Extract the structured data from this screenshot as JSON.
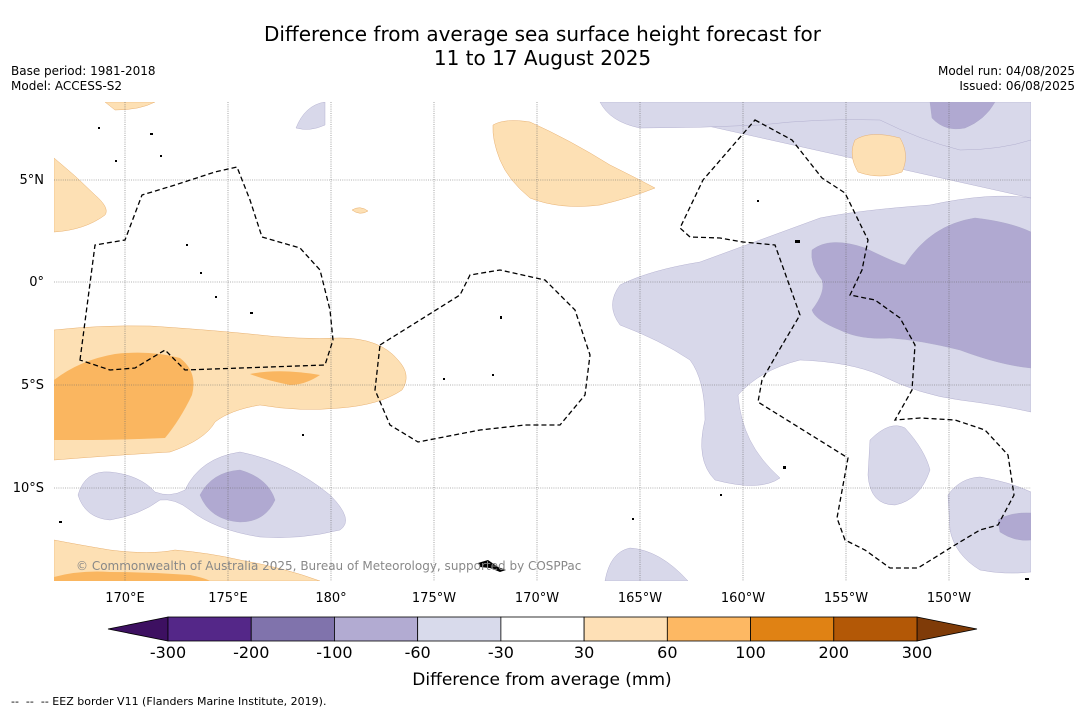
{
  "title": {
    "line1": "Difference from average sea surface height forecast for",
    "line2": "11 to 17 August 2025"
  },
  "meta": {
    "base_period": "Base period: 1981-2018",
    "model": "Model: ACCESS-S2",
    "model_run": "Model run: 04/08/2025",
    "issued": "Issued: 06/08/2025"
  },
  "map": {
    "lat_labels": [
      "5°N",
      "0°",
      "5°S",
      "10°S"
    ],
    "lon_labels": [
      "170°E",
      "175°E",
      "180°",
      "175°W",
      "170°W",
      "165°W",
      "160°W",
      "155°W",
      "150°W"
    ],
    "copyright": "© Commonwealth of Australia 2025, Bureau of Meteorology, supported by COSPPac",
    "colors": {
      "neg_30_60": "#d8d8ea",
      "neg_60_100": "#b0a9d1",
      "pos_30_60": "#fde0b4",
      "pos_60_100": "#fab660"
    }
  },
  "colorbar": {
    "title": "Difference from average (mm)",
    "ticks": [
      "-300",
      "-200",
      "-100",
      "-60",
      "-30",
      "30",
      "60",
      "100",
      "200",
      "300"
    ],
    "colors": [
      "#3d1061",
      "#542788",
      "#8073ac",
      "#b2abd2",
      "#d8daeb",
      "#ffffff",
      "#fee0b6",
      "#fdb863",
      "#e08214",
      "#b35806",
      "#7f3b08"
    ]
  },
  "eez_note": "--  --  -- EEZ border V11 (Flanders Marine Institute, 2019)."
}
